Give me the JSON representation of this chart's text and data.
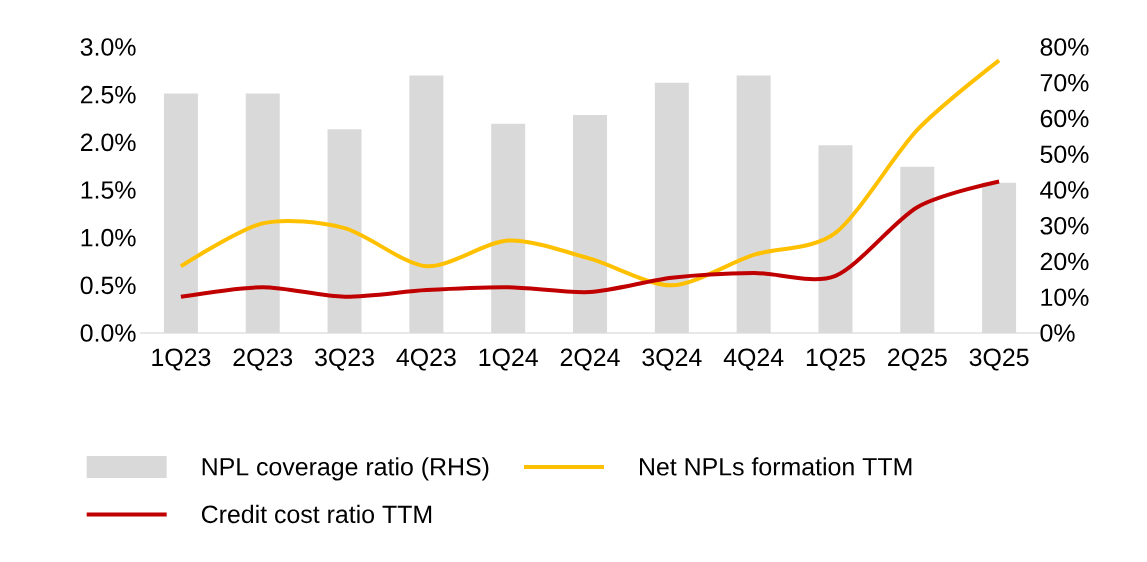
{
  "chart_data": {
    "type": "bar",
    "categories": [
      "1Q23",
      "2Q23",
      "3Q23",
      "4Q23",
      "1Q24",
      "2Q24",
      "3Q24",
      "4Q24",
      "1Q25",
      "2Q25",
      "3Q25"
    ],
    "series": [
      {
        "name": "NPL coverage ratio (RHS)",
        "axis": "y2",
        "color": "#d9d9d9",
        "values": [
          67,
          67,
          57,
          72,
          58.5,
          61,
          70,
          72,
          52.5,
          46.5,
          42
        ]
      },
      {
        "name": "Net NPLs formation TTM",
        "type": "line",
        "color": "#ffc000",
        "values": [
          0.7,
          1.15,
          1.1,
          0.7,
          0.97,
          0.78,
          0.5,
          0.82,
          1.05,
          2.13,
          2.86
        ]
      },
      {
        "name": "Credit cost ratio TTM",
        "type": "line",
        "color": "#c00000",
        "values": [
          0.38,
          0.48,
          0.38,
          0.45,
          0.48,
          0.43,
          0.58,
          0.63,
          0.6,
          1.32,
          1.59
        ]
      }
    ],
    "ylim": [
      0,
      3
    ],
    "yticks": [
      {
        "value": 0,
        "label": "0.0%"
      },
      {
        "value": 0.5,
        "label": "0.5%"
      },
      {
        "value": 1,
        "label": "1.0%"
      },
      {
        "value": 1.5,
        "label": "1.5%"
      },
      {
        "value": 2,
        "label": "2.0%"
      },
      {
        "value": 2.5,
        "label": "2.5%"
      },
      {
        "value": 3,
        "label": "3.0%"
      }
    ],
    "y2lim": [
      0,
      80
    ],
    "y2ticks": [
      {
        "value": 0,
        "label": "0%"
      },
      {
        "value": 10,
        "label": "10%"
      },
      {
        "value": 20,
        "label": "20%"
      },
      {
        "value": 30,
        "label": "30%"
      },
      {
        "value": 40,
        "label": "40%"
      },
      {
        "value": 50,
        "label": "50%"
      },
      {
        "value": 60,
        "label": "60%"
      },
      {
        "value": 70,
        "label": "70%"
      },
      {
        "value": 80,
        "label": "80%"
      }
    ],
    "grid": false,
    "legend": "bottom"
  }
}
